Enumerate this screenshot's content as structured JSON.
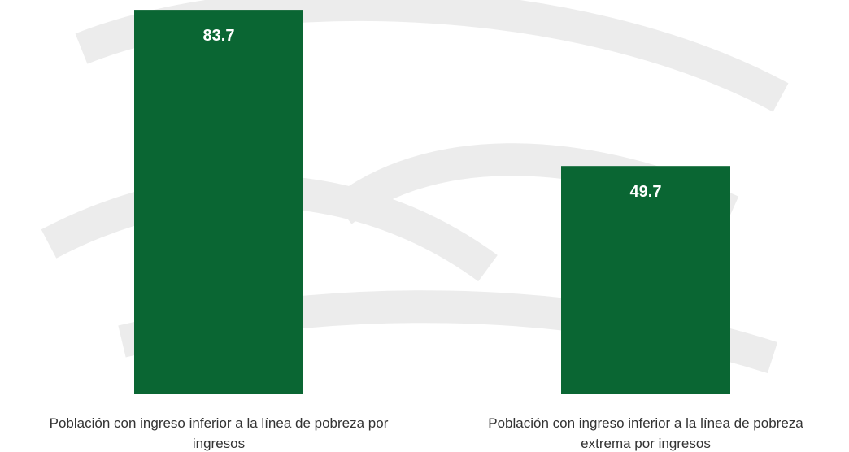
{
  "chart_data": {
    "type": "bar",
    "categories": [
      "Población con ingreso inferior a la línea de pobreza por ingresos",
      "Población con ingreso inferior a la línea de pobreza extrema por ingresos"
    ],
    "values": [
      83.7,
      49.7
    ],
    "color": "#0a6633"
  }
}
